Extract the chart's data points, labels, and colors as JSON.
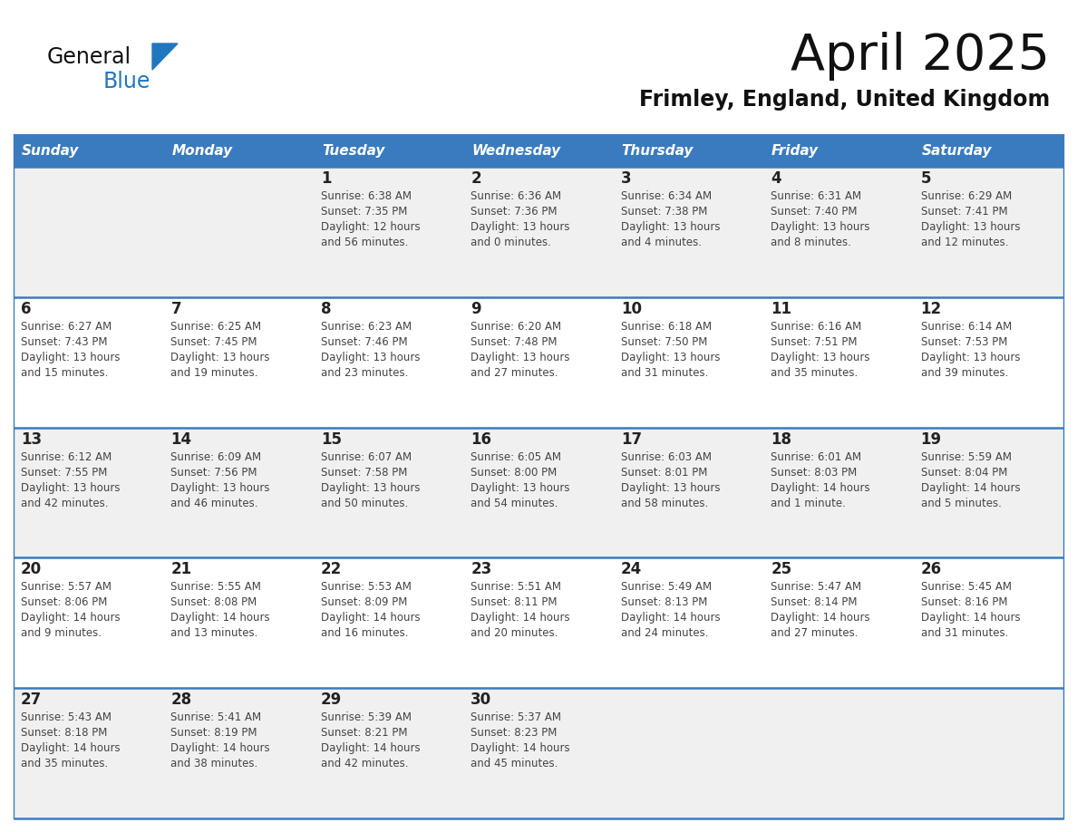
{
  "title": "April 2025",
  "subtitle": "Frimley, England, United Kingdom",
  "header_bg": "#3a7bbf",
  "header_text_color": "#ffffff",
  "weekdays": [
    "Sunday",
    "Monday",
    "Tuesday",
    "Wednesday",
    "Thursday",
    "Friday",
    "Saturday"
  ],
  "row_bg_light": "#f0f0f0",
  "row_bg_white": "#ffffff",
  "cell_text_color": "#444444",
  "day_num_color": "#222222",
  "border_color": "#3a7bbf",
  "logo_general_color": "#111111",
  "logo_blue_color": "#2077c0",
  "weeks": [
    {
      "days": [
        {
          "date": "",
          "info": ""
        },
        {
          "date": "",
          "info": ""
        },
        {
          "date": "1",
          "info": "Sunrise: 6:38 AM\nSunset: 7:35 PM\nDaylight: 12 hours\nand 56 minutes."
        },
        {
          "date": "2",
          "info": "Sunrise: 6:36 AM\nSunset: 7:36 PM\nDaylight: 13 hours\nand 0 minutes."
        },
        {
          "date": "3",
          "info": "Sunrise: 6:34 AM\nSunset: 7:38 PM\nDaylight: 13 hours\nand 4 minutes."
        },
        {
          "date": "4",
          "info": "Sunrise: 6:31 AM\nSunset: 7:40 PM\nDaylight: 13 hours\nand 8 minutes."
        },
        {
          "date": "5",
          "info": "Sunrise: 6:29 AM\nSunset: 7:41 PM\nDaylight: 13 hours\nand 12 minutes."
        }
      ]
    },
    {
      "days": [
        {
          "date": "6",
          "info": "Sunrise: 6:27 AM\nSunset: 7:43 PM\nDaylight: 13 hours\nand 15 minutes."
        },
        {
          "date": "7",
          "info": "Sunrise: 6:25 AM\nSunset: 7:45 PM\nDaylight: 13 hours\nand 19 minutes."
        },
        {
          "date": "8",
          "info": "Sunrise: 6:23 AM\nSunset: 7:46 PM\nDaylight: 13 hours\nand 23 minutes."
        },
        {
          "date": "9",
          "info": "Sunrise: 6:20 AM\nSunset: 7:48 PM\nDaylight: 13 hours\nand 27 minutes."
        },
        {
          "date": "10",
          "info": "Sunrise: 6:18 AM\nSunset: 7:50 PM\nDaylight: 13 hours\nand 31 minutes."
        },
        {
          "date": "11",
          "info": "Sunrise: 6:16 AM\nSunset: 7:51 PM\nDaylight: 13 hours\nand 35 minutes."
        },
        {
          "date": "12",
          "info": "Sunrise: 6:14 AM\nSunset: 7:53 PM\nDaylight: 13 hours\nand 39 minutes."
        }
      ]
    },
    {
      "days": [
        {
          "date": "13",
          "info": "Sunrise: 6:12 AM\nSunset: 7:55 PM\nDaylight: 13 hours\nand 42 minutes."
        },
        {
          "date": "14",
          "info": "Sunrise: 6:09 AM\nSunset: 7:56 PM\nDaylight: 13 hours\nand 46 minutes."
        },
        {
          "date": "15",
          "info": "Sunrise: 6:07 AM\nSunset: 7:58 PM\nDaylight: 13 hours\nand 50 minutes."
        },
        {
          "date": "16",
          "info": "Sunrise: 6:05 AM\nSunset: 8:00 PM\nDaylight: 13 hours\nand 54 minutes."
        },
        {
          "date": "17",
          "info": "Sunrise: 6:03 AM\nSunset: 8:01 PM\nDaylight: 13 hours\nand 58 minutes."
        },
        {
          "date": "18",
          "info": "Sunrise: 6:01 AM\nSunset: 8:03 PM\nDaylight: 14 hours\nand 1 minute."
        },
        {
          "date": "19",
          "info": "Sunrise: 5:59 AM\nSunset: 8:04 PM\nDaylight: 14 hours\nand 5 minutes."
        }
      ]
    },
    {
      "days": [
        {
          "date": "20",
          "info": "Sunrise: 5:57 AM\nSunset: 8:06 PM\nDaylight: 14 hours\nand 9 minutes."
        },
        {
          "date": "21",
          "info": "Sunrise: 5:55 AM\nSunset: 8:08 PM\nDaylight: 14 hours\nand 13 minutes."
        },
        {
          "date": "22",
          "info": "Sunrise: 5:53 AM\nSunset: 8:09 PM\nDaylight: 14 hours\nand 16 minutes."
        },
        {
          "date": "23",
          "info": "Sunrise: 5:51 AM\nSunset: 8:11 PM\nDaylight: 14 hours\nand 20 minutes."
        },
        {
          "date": "24",
          "info": "Sunrise: 5:49 AM\nSunset: 8:13 PM\nDaylight: 14 hours\nand 24 minutes."
        },
        {
          "date": "25",
          "info": "Sunrise: 5:47 AM\nSunset: 8:14 PM\nDaylight: 14 hours\nand 27 minutes."
        },
        {
          "date": "26",
          "info": "Sunrise: 5:45 AM\nSunset: 8:16 PM\nDaylight: 14 hours\nand 31 minutes."
        }
      ]
    },
    {
      "days": [
        {
          "date": "27",
          "info": "Sunrise: 5:43 AM\nSunset: 8:18 PM\nDaylight: 14 hours\nand 35 minutes."
        },
        {
          "date": "28",
          "info": "Sunrise: 5:41 AM\nSunset: 8:19 PM\nDaylight: 14 hours\nand 38 minutes."
        },
        {
          "date": "29",
          "info": "Sunrise: 5:39 AM\nSunset: 8:21 PM\nDaylight: 14 hours\nand 42 minutes."
        },
        {
          "date": "30",
          "info": "Sunrise: 5:37 AM\nSunset: 8:23 PM\nDaylight: 14 hours\nand 45 minutes."
        },
        {
          "date": "",
          "info": ""
        },
        {
          "date": "",
          "info": ""
        },
        {
          "date": "",
          "info": ""
        }
      ]
    }
  ]
}
